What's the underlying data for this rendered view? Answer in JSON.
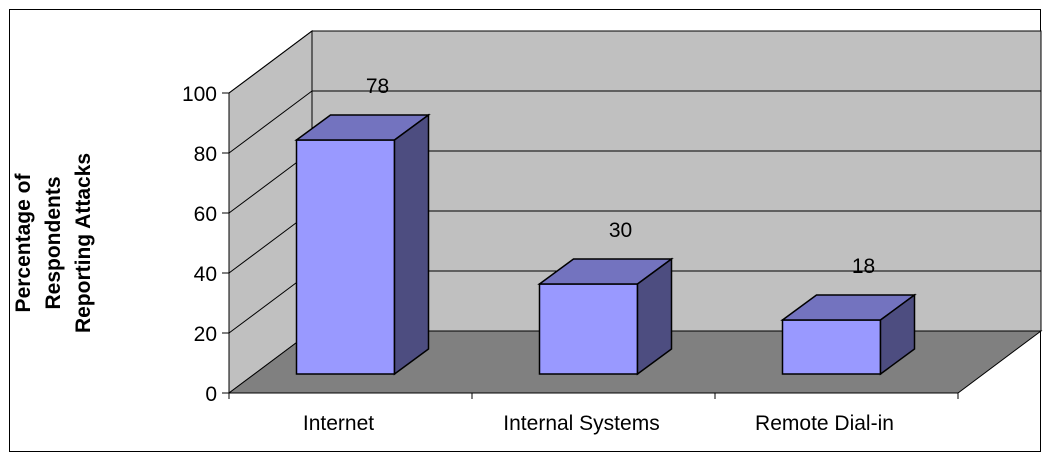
{
  "chart_data": {
    "type": "bar",
    "three_d": true,
    "title": "",
    "xlabel": "",
    "ylabel_lines": [
      "Percentage of",
      "Respondents",
      "Reporting Attacks"
    ],
    "categories": [
      "Internet",
      "Internal Systems",
      "Remote Dial-in"
    ],
    "values": [
      78,
      30,
      18
    ],
    "data_labels": [
      "78",
      "30",
      "18"
    ],
    "yticks": [
      "0",
      "20",
      "40",
      "60",
      "80",
      "100"
    ],
    "ylim": [
      0,
      100
    ],
    "grid": true,
    "legend": "none",
    "colors": {
      "bar_front": "#9999ff",
      "bar_top": "#7373bf",
      "bar_side": "#4d4d80",
      "back_wall": "#c0c0c0",
      "side_wall": "#c0c0c0",
      "floor": "#808080"
    }
  }
}
